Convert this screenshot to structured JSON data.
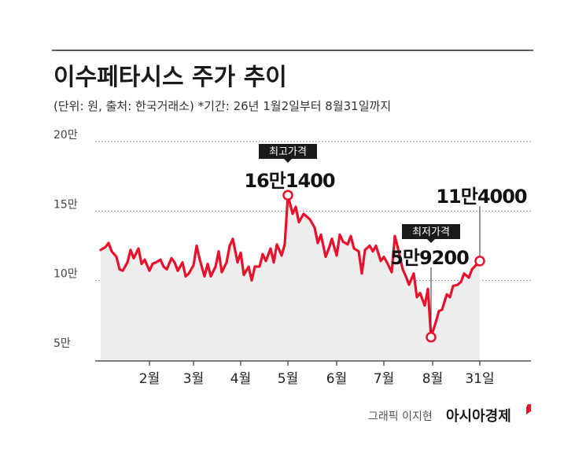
{
  "chart_data": {
    "type": "line",
    "title": "이수페타시스 주가 추이",
    "subtitle": "(단위: 원, 출처: 한국거래소)  *기간: 26년 1월2일부터 8월31일까지",
    "y_ticks": [
      {
        "value": 200000,
        "label": "20만"
      },
      {
        "value": 150000,
        "label": "15만"
      },
      {
        "value": 100000,
        "label": "10만"
      },
      {
        "value": 50000,
        "label": "5만"
      }
    ],
    "ylim": [
      50000,
      200000
    ],
    "x_ticks": [
      {
        "date": "2026-02-02",
        "label": "2월"
      },
      {
        "date": "2026-03-02",
        "label": "3월"
      },
      {
        "date": "2026-04-01",
        "label": "4월"
      },
      {
        "date": "2026-05-01",
        "label": "5월"
      },
      {
        "date": "2026-06-01",
        "label": "6월"
      },
      {
        "date": "2026-07-01",
        "label": "7월"
      },
      {
        "date": "2026-08-01",
        "label": "8월"
      },
      {
        "date": "2026-08-31",
        "label": "31일"
      }
    ],
    "xlim": [
      "2026-01-02",
      "2026-08-31"
    ],
    "series": [
      {
        "color": "#e8102a",
        "points": [
          [
            "2026-01-02",
            122000
          ],
          [
            "2026-01-05",
            124000
          ],
          [
            "2026-01-07",
            127000
          ],
          [
            "2026-01-09",
            121000
          ],
          [
            "2026-01-12",
            117000
          ],
          [
            "2026-01-14",
            108000
          ],
          [
            "2026-01-16",
            107000
          ],
          [
            "2026-01-19",
            113000
          ],
          [
            "2026-01-21",
            122000
          ],
          [
            "2026-01-23",
            116000
          ],
          [
            "2026-01-26",
            123000
          ],
          [
            "2026-01-28",
            112000
          ],
          [
            "2026-01-30",
            115000
          ],
          [
            "2026-02-02",
            107000
          ],
          [
            "2026-02-04",
            112000
          ],
          [
            "2026-02-06",
            113000
          ],
          [
            "2026-02-09",
            115000
          ],
          [
            "2026-02-11",
            110000
          ],
          [
            "2026-02-13",
            108000
          ],
          [
            "2026-02-16",
            116000
          ],
          [
            "2026-02-18",
            113000
          ],
          [
            "2026-02-20",
            107000
          ],
          [
            "2026-02-23",
            113000
          ],
          [
            "2026-02-25",
            103000
          ],
          [
            "2026-02-27",
            105000
          ],
          [
            "2026-03-02",
            111000
          ],
          [
            "2026-03-04",
            125000
          ],
          [
            "2026-03-06",
            115000
          ],
          [
            "2026-03-09",
            103000
          ],
          [
            "2026-03-11",
            112000
          ],
          [
            "2026-03-13",
            103000
          ],
          [
            "2026-03-16",
            110000
          ],
          [
            "2026-03-18",
            121000
          ],
          [
            "2026-03-20",
            106000
          ],
          [
            "2026-03-23",
            113000
          ],
          [
            "2026-03-25",
            125000
          ],
          [
            "2026-03-27",
            130000
          ],
          [
            "2026-03-30",
            113000
          ],
          [
            "2026-04-01",
            120000
          ],
          [
            "2026-04-03",
            104000
          ],
          [
            "2026-04-06",
            110000
          ],
          [
            "2026-04-08",
            100000
          ],
          [
            "2026-04-10",
            110000
          ],
          [
            "2026-04-13",
            110000
          ],
          [
            "2026-04-15",
            119000
          ],
          [
            "2026-04-17",
            114000
          ],
          [
            "2026-04-20",
            123000
          ],
          [
            "2026-04-22",
            113000
          ],
          [
            "2026-04-24",
            126000
          ],
          [
            "2026-04-27",
            118000
          ],
          [
            "2026-04-29",
            126000
          ],
          [
            "2026-05-01",
            161400
          ],
          [
            "2026-05-04",
            148000
          ],
          [
            "2026-05-06",
            153000
          ],
          [
            "2026-05-08",
            142000
          ],
          [
            "2026-05-11",
            148000
          ],
          [
            "2026-05-13",
            146000
          ],
          [
            "2026-05-15",
            144000
          ],
          [
            "2026-05-18",
            138000
          ],
          [
            "2026-05-20",
            127000
          ],
          [
            "2026-05-22",
            133000
          ],
          [
            "2026-05-25",
            117000
          ],
          [
            "2026-05-27",
            123000
          ],
          [
            "2026-05-29",
            130000
          ],
          [
            "2026-06-01",
            118000
          ],
          [
            "2026-06-03",
            133000
          ],
          [
            "2026-06-05",
            128000
          ],
          [
            "2026-06-08",
            126000
          ],
          [
            "2026-06-10",
            132000
          ],
          [
            "2026-06-12",
            123000
          ],
          [
            "2026-06-15",
            121000
          ],
          [
            "2026-06-17",
            105000
          ],
          [
            "2026-06-19",
            122000
          ],
          [
            "2026-06-22",
            125000
          ],
          [
            "2026-06-24",
            121000
          ],
          [
            "2026-06-26",
            125000
          ],
          [
            "2026-06-29",
            114000
          ],
          [
            "2026-07-01",
            117000
          ],
          [
            "2026-07-03",
            113000
          ],
          [
            "2026-07-06",
            106000
          ],
          [
            "2026-07-08",
            132000
          ],
          [
            "2026-07-10",
            123000
          ],
          [
            "2026-07-13",
            108000
          ],
          [
            "2026-07-15",
            103000
          ],
          [
            "2026-07-17",
            97000
          ],
          [
            "2026-07-20",
            105000
          ],
          [
            "2026-07-22",
            88000
          ],
          [
            "2026-07-24",
            91000
          ],
          [
            "2026-07-27",
            82000
          ],
          [
            "2026-07-29",
            94000
          ],
          [
            "2026-07-31",
            59200
          ],
          [
            "2026-08-03",
            70000
          ],
          [
            "2026-08-05",
            78000
          ],
          [
            "2026-08-07",
            79000
          ],
          [
            "2026-08-10",
            90000
          ],
          [
            "2026-08-12",
            88000
          ],
          [
            "2026-08-14",
            96000
          ],
          [
            "2026-08-17",
            97000
          ],
          [
            "2026-08-19",
            99000
          ],
          [
            "2026-08-21",
            105000
          ],
          [
            "2026-08-24",
            102000
          ],
          [
            "2026-08-26",
            108000
          ],
          [
            "2026-08-31",
            114000
          ]
        ]
      }
    ],
    "annotations": [
      {
        "tag": "최고가격",
        "value_label": "16만1400",
        "date": "2026-05-01",
        "value": 161400
      },
      {
        "tag": "최저가격",
        "value_label": "5만9200",
        "date": "2026-07-31",
        "value": 59200
      },
      {
        "value_label": "11만4000",
        "date": "2026-08-31",
        "value": 114000
      }
    ],
    "grid": true
  },
  "credit": {
    "label": "그래픽 이지현",
    "brand": "아시아경제"
  }
}
